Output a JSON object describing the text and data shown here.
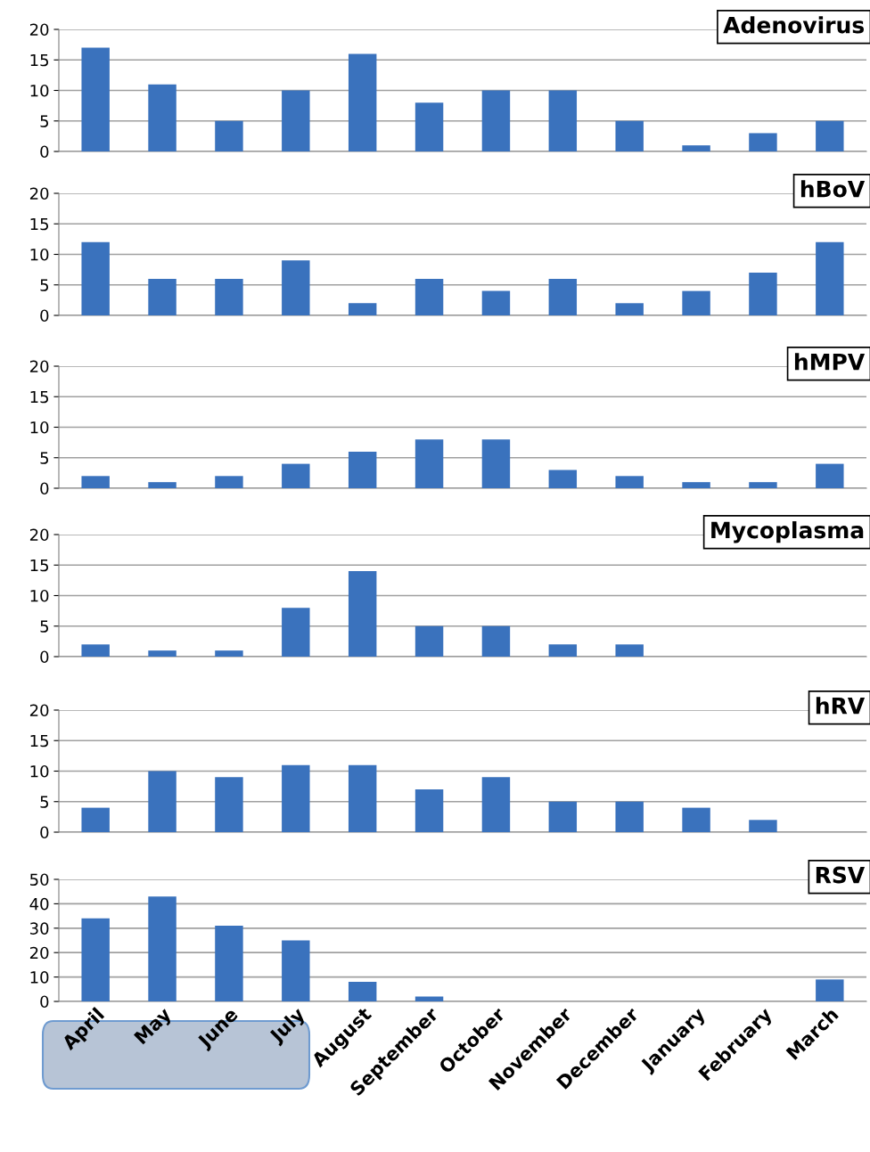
{
  "chart_data": [
    {
      "type": "bar",
      "title": "Adenovirus",
      "categories": [
        null,
        null,
        null,
        null,
        null,
        null,
        null,
        null,
        null,
        null,
        null,
        null
      ],
      "values": [
        17,
        11,
        5,
        10,
        16,
        8,
        10,
        10,
        5,
        1,
        3,
        5
      ],
      "color": "#3a72bd",
      "ylim": [
        0,
        20
      ],
      "yticks": [
        0,
        5,
        10,
        15,
        20
      ],
      "grid": "y",
      "tick_labels": "y"
    },
    {
      "type": "bar",
      "title": "hBoV",
      "categories": [
        null,
        null,
        null,
        null,
        null,
        null,
        null,
        null,
        null,
        null,
        null,
        null
      ],
      "values": [
        12,
        6,
        6,
        9,
        2,
        6,
        4,
        6,
        2,
        4,
        7,
        12
      ],
      "color": "#3a72bd",
      "ylim": [
        0,
        20
      ],
      "yticks": [
        0,
        5,
        10,
        15,
        20
      ],
      "grid": "y",
      "tick_labels": "y"
    },
    {
      "type": "bar",
      "title": "hMPV",
      "categories": [
        null,
        null,
        null,
        null,
        null,
        null,
        null,
        null,
        null,
        null,
        null,
        null
      ],
      "values": [
        2,
        1,
        2,
        4,
        6,
        8,
        8,
        3,
        2,
        1,
        1,
        4
      ],
      "color": "#3a72bd",
      "ylim": [
        0,
        20
      ],
      "yticks": [
        0,
        5,
        10,
        15,
        20
      ],
      "grid": "y",
      "tick_labels": "y"
    },
    {
      "type": "bar",
      "title": "Mycoplasma",
      "categories": [
        null,
        null,
        null,
        null,
        null,
        null,
        null,
        null,
        null,
        null,
        null,
        null
      ],
      "values": [
        2,
        1,
        1,
        8,
        14,
        5,
        5,
        2,
        2,
        0,
        0,
        0
      ],
      "color": "#3a72bd",
      "ylim": [
        0,
        20
      ],
      "yticks": [
        0,
        5,
        10,
        15,
        20
      ],
      "grid": "y",
      "tick_labels": "y"
    },
    {
      "type": "bar",
      "title": "hRV",
      "categories": [
        null,
        null,
        null,
        null,
        null,
        null,
        null,
        null,
        null,
        null,
        null,
        null
      ],
      "values": [
        4,
        10,
        9,
        11,
        11,
        7,
        9,
        5,
        5,
        4,
        2,
        0
      ],
      "color": "#3a72bd",
      "ylim": [
        0,
        20
      ],
      "yticks": [
        0,
        5,
        10,
        15,
        20
      ],
      "grid": "y",
      "tick_labels": "y"
    },
    {
      "type": "bar",
      "title": "RSV",
      "categories": [
        "April",
        "May",
        "June",
        "July",
        "August",
        "September",
        "October",
        "November",
        "December",
        "January",
        "February",
        "March"
      ],
      "values": [
        34,
        43,
        31,
        25,
        8,
        2,
        0,
        0,
        0,
        0,
        0,
        9
      ],
      "color": "#3a72bd",
      "ylim": [
        0,
        50
      ],
      "yticks": [
        0,
        10,
        20,
        30,
        40,
        50
      ],
      "grid": "y"
    }
  ]
}
